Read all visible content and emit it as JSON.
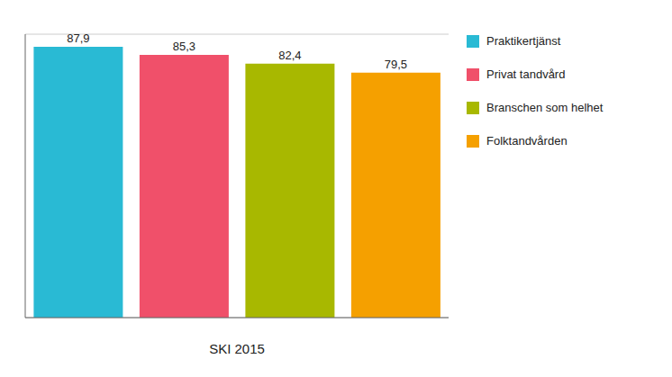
{
  "chart_data": {
    "type": "bar",
    "categories": [
      "Praktikertjänst",
      "Privat tandvård",
      "Branschen som helhet",
      "Folktandvården"
    ],
    "values": [
      87.9,
      85.3,
      82.4,
      79.5
    ],
    "value_labels": [
      "87,9",
      "85,3",
      "82,4",
      "79,5"
    ],
    "colors": [
      "#29BAD4",
      "#F0506A",
      "#A8B800",
      "#F5A000"
    ],
    "xlabel": "SKI 2015",
    "ylim": [
      0,
      92
    ],
    "yticks": [
      0,
      10,
      20,
      30,
      40,
      50,
      60,
      70,
      80,
      90
    ],
    "grid": true,
    "data_labels": true,
    "tick_labels": false,
    "legend": "right"
  }
}
